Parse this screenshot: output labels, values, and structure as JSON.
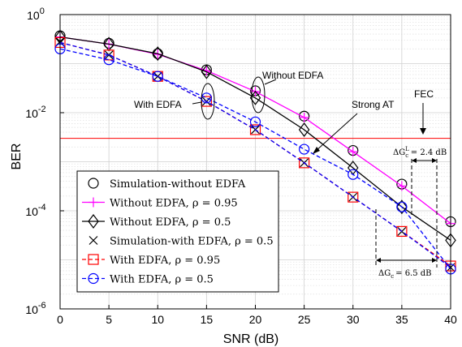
{
  "chart_data": {
    "type": "line",
    "xlabel": "SNR (dB)",
    "ylabel": "BER",
    "xlim": [
      0,
      40
    ],
    "ylim": [
      1e-06,
      1
    ],
    "yscale": "log",
    "grid": true,
    "legend_position": "bottom-left",
    "x_ticks": [
      "0",
      "5",
      "10",
      "15",
      "20",
      "25",
      "30",
      "35",
      "40"
    ],
    "y_ticks": [
      {
        "base": "10",
        "exp": "0"
      },
      {
        "base": "10",
        "exp": "-2"
      },
      {
        "base": "10",
        "exp": "-4"
      },
      {
        "base": "10",
        "exp": "-6"
      }
    ],
    "fec_threshold": 0.003,
    "series": [
      {
        "name": "Simulation-without EDFA",
        "color": "#000000",
        "marker": "circle",
        "line": "none",
        "x": [
          0,
          5,
          10,
          15,
          20,
          25,
          30,
          35,
          40
        ],
        "y": [
          0.37,
          0.26,
          0.16,
          0.075,
          0.028,
          0.0085,
          0.0017,
          0.00035,
          6e-05
        ]
      },
      {
        "name": "Without EDFA, ρ = 0.95",
        "color": "#ff00ff",
        "marker": "plus",
        "line": "solid",
        "x": [
          0,
          5,
          10,
          15,
          20,
          25,
          30,
          35,
          40
        ],
        "y": [
          0.35,
          0.25,
          0.155,
          0.072,
          0.027,
          0.008,
          0.0016,
          0.00032,
          5.5e-05
        ]
      },
      {
        "name": "Without EDFA, ρ = 0.5",
        "color": "#000000",
        "marker": "diamond",
        "line": "solid",
        "x": [
          0,
          5,
          10,
          15,
          20,
          25,
          30,
          35,
          40
        ],
        "y": [
          0.35,
          0.25,
          0.16,
          0.068,
          0.02,
          0.0045,
          0.00075,
          0.00012,
          2.5e-05
        ]
      },
      {
        "name": "Simulation-with EDFA, ρ = 0.5",
        "color": "#000000",
        "marker": "x",
        "line": "none",
        "x": [
          0,
          5,
          10,
          15,
          20,
          25,
          30,
          35,
          40
        ],
        "y": [
          0.28,
          0.15,
          0.055,
          0.017,
          0.0045,
          0.00095,
          0.00019,
          3.8e-05,
          7e-06
        ]
      },
      {
        "name": "With EDFA, ρ = 0.95",
        "color": "#ff0000",
        "marker": "square",
        "line": "dashed",
        "x": [
          0,
          5,
          10,
          15,
          20,
          25,
          30,
          35,
          40
        ],
        "y": [
          0.27,
          0.15,
          0.055,
          0.017,
          0.0045,
          0.00095,
          0.00019,
          3.8e-05,
          7.5e-06
        ]
      },
      {
        "name": "With EDFA, ρ = 0.5",
        "color": "#0000ff",
        "marker": "circle",
        "line": "dashed",
        "x": [
          0,
          5,
          10,
          15,
          20,
          25,
          30,
          35,
          40
        ],
        "y": [
          0.2,
          0.12,
          0.055,
          0.02,
          0.0065,
          0.0018,
          0.00055,
          0.00012,
          6.5e-06
        ]
      },
      {
        "name": "",
        "color": "#0000ff",
        "marker": "none",
        "line": "dashed",
        "x": [
          0,
          5,
          10,
          15,
          20,
          25,
          30,
          35,
          40
        ],
        "y": [
          0.27,
          0.15,
          0.055,
          0.017,
          0.0045,
          0.00095,
          0.00019,
          3.8e-05,
          7e-06
        ]
      }
    ],
    "annotations": {
      "without_edfa": "Without EDFA",
      "with_edfa": "With EDFA",
      "strong_at": "Strong AT",
      "fec": "FEC",
      "delta_gc_l": "ΔG",
      "delta_gc_l_sub": "c",
      "delta_gc_l_sup": "L",
      "delta_gc_l_value": "= 2.4 dB",
      "delta_gc": "ΔG",
      "delta_gc_sub": "c",
      "delta_gc_value": "= 6.5 dB"
    }
  }
}
